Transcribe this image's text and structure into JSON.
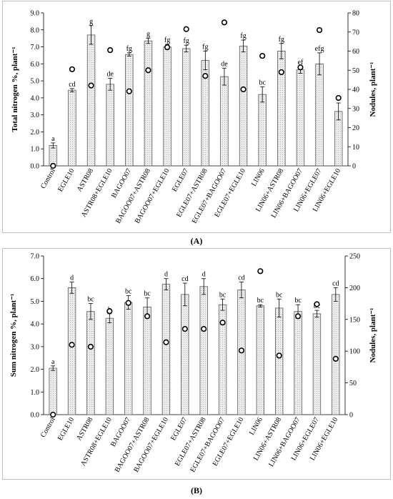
{
  "chart_data": [
    {
      "type": "bar",
      "panel_label": "(A)",
      "categories": [
        "Control",
        "EGLE10",
        "ASTR08",
        "ASTR08+EGLE10",
        "BAGOO07",
        "BAGOO07+ASTR08",
        "BAGOO07+EGLE10",
        "EGLE07",
        "EGLE07+ASTR08",
        "EGLE07+BAGOO07",
        "EGLE07+EGLE10",
        "LIN06",
        "LIN06+ASTR08",
        "LIN06+BAGOO07",
        "LIN06+EGLE07",
        "LIN06+EGLE10"
      ],
      "series": [
        {
          "name": "",
          "kind": "bar",
          "axis": "left",
          "values": [
            1.2,
            4.45,
            7.7,
            4.8,
            6.55,
            7.35,
            7.0,
            6.9,
            6.2,
            5.25,
            7.05,
            4.2,
            6.75,
            5.65,
            6.0,
            3.2
          ],
          "errors": [
            0.15,
            0.1,
            0.55,
            0.35,
            0.1,
            0.15,
            0.15,
            0.2,
            0.55,
            0.5,
            0.35,
            0.45,
            0.45,
            0.2,
            0.65,
            0.5
          ],
          "letters": [
            "a",
            "cd",
            "g",
            "de",
            "fg",
            "g",
            "fg",
            "fg",
            "fg",
            "de",
            "fg",
            "bc",
            "fg",
            "ef",
            "efg",
            "b"
          ]
        },
        {
          "name": "",
          "kind": "scatter",
          "axis": "right",
          "values": [
            0,
            50.5,
            42,
            60.5,
            39,
            50,
            62,
            71.5,
            47,
            75,
            40,
            57.5,
            49,
            51.5,
            71,
            35.5
          ]
        }
      ],
      "ylabel": "Total nitrogen %, plant⁻¹",
      "y2label": "Nodules, plant⁻¹",
      "ylim": [
        0,
        9
      ],
      "y2lim": [
        0,
        80
      ],
      "yticks": [
        "0.0",
        "1.0",
        "2.0",
        "3.0",
        "4.0",
        "5.0",
        "6.0",
        "7.0",
        "8.0",
        "9.0"
      ],
      "y2ticks": [
        "0",
        "10",
        "20",
        "30",
        "40",
        "50",
        "60",
        "70",
        "80"
      ],
      "grid": false,
      "legend": "none",
      "bar_fill": "#ececec",
      "bar_edge": "#595959"
    },
    {
      "type": "bar",
      "panel_label": "(B)",
      "categories": [
        "Control",
        "EGLE10",
        "ASTR08",
        "ASTR08+EGLE10",
        "BAGOO07",
        "BAGOO07+ASTR08",
        "BAGOO07+EGLE10",
        "EGLE07",
        "EGLE07+ASTR08",
        "EGLE07+BAGOO07",
        "EGLE07+EGLE10",
        "LIN06",
        "LIN06+ASTR08",
        "LIN06+BAGOO07",
        "LIN06+EGLE07",
        "LIN06+EGLE10"
      ],
      "series": [
        {
          "name": "",
          "kind": "bar",
          "axis": "left",
          "values": [
            2.05,
            5.6,
            4.55,
            4.25,
            4.95,
            4.75,
            5.75,
            5.3,
            5.65,
            4.85,
            5.5,
            4.8,
            4.7,
            4.55,
            4.45,
            5.3
          ],
          "errors": [
            0.1,
            0.25,
            0.35,
            0.2,
            0.3,
            0.4,
            0.25,
            0.5,
            0.35,
            0.25,
            0.35,
            0.05,
            0.4,
            0.3,
            0.15,
            0.3
          ],
          "letters": [
            "a",
            "d",
            "bc",
            "b",
            "bc",
            "bc",
            "d",
            "cd",
            "d",
            "bc",
            "cd",
            "bc",
            "bc",
            "bc",
            "bc",
            "cd"
          ]
        },
        {
          "name": "",
          "kind": "scatter",
          "axis": "right",
          "values": [
            0,
            110,
            107,
            163,
            176,
            155,
            114,
            135,
            135,
            145,
            101,
            226,
            93,
            155,
            174,
            88
          ]
        }
      ],
      "ylabel": "Sum nitrogen %, plant⁻¹",
      "y2label": "Nodules, plant⁻¹",
      "ylim": [
        0,
        7
      ],
      "y2lim": [
        0,
        250
      ],
      "yticks": [
        "0.0",
        "1.0",
        "2.0",
        "3.0",
        "4.0",
        "5.0",
        "6.0",
        "7.0"
      ],
      "y2ticks": [
        "0",
        "50",
        "100",
        "150",
        "200",
        "250"
      ],
      "grid": false,
      "legend": "none",
      "bar_fill": "#ececec",
      "bar_edge": "#595959"
    }
  ]
}
